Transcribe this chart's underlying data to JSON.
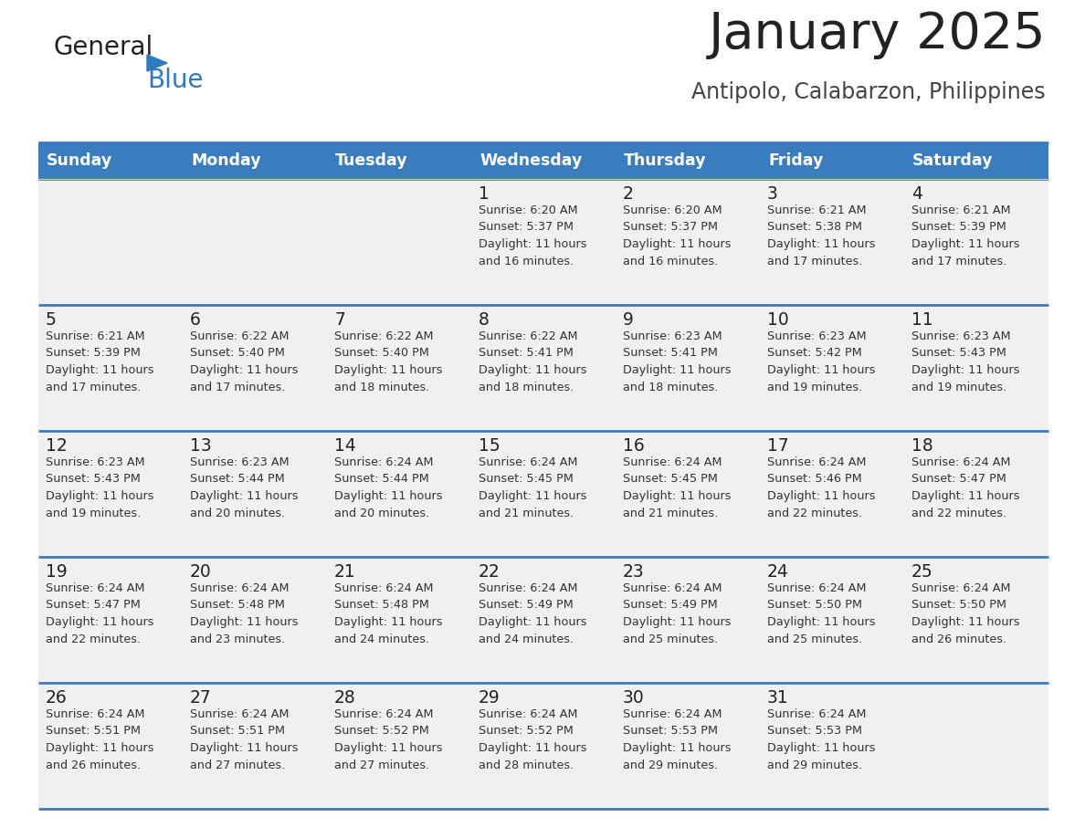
{
  "title": "January 2025",
  "subtitle": "Antipolo, Calabarzon, Philippines",
  "header_bg": "#3a7dbf",
  "header_text": "#ffffff",
  "row_bg": "#f0f0f0",
  "separator_color": "#3a7dbf",
  "day_headers": [
    "Sunday",
    "Monday",
    "Tuesday",
    "Wednesday",
    "Thursday",
    "Friday",
    "Saturday"
  ],
  "cell_text_color": "#333333",
  "day_number_color": "#222222",
  "logo_general_color": "#222222",
  "logo_blue_color": "#2a7cbf",
  "title_color": "#222222",
  "subtitle_color": "#444444",
  "calendar_data": [
    [
      "",
      "",
      "",
      "1\nSunrise: 6:20 AM\nSunset: 5:37 PM\nDaylight: 11 hours\nand 16 minutes.",
      "2\nSunrise: 6:20 AM\nSunset: 5:37 PM\nDaylight: 11 hours\nand 16 minutes.",
      "3\nSunrise: 6:21 AM\nSunset: 5:38 PM\nDaylight: 11 hours\nand 17 minutes.",
      "4\nSunrise: 6:21 AM\nSunset: 5:39 PM\nDaylight: 11 hours\nand 17 minutes."
    ],
    [
      "5\nSunrise: 6:21 AM\nSunset: 5:39 PM\nDaylight: 11 hours\nand 17 minutes.",
      "6\nSunrise: 6:22 AM\nSunset: 5:40 PM\nDaylight: 11 hours\nand 17 minutes.",
      "7\nSunrise: 6:22 AM\nSunset: 5:40 PM\nDaylight: 11 hours\nand 18 minutes.",
      "8\nSunrise: 6:22 AM\nSunset: 5:41 PM\nDaylight: 11 hours\nand 18 minutes.",
      "9\nSunrise: 6:23 AM\nSunset: 5:41 PM\nDaylight: 11 hours\nand 18 minutes.",
      "10\nSunrise: 6:23 AM\nSunset: 5:42 PM\nDaylight: 11 hours\nand 19 minutes.",
      "11\nSunrise: 6:23 AM\nSunset: 5:43 PM\nDaylight: 11 hours\nand 19 minutes."
    ],
    [
      "12\nSunrise: 6:23 AM\nSunset: 5:43 PM\nDaylight: 11 hours\nand 19 minutes.",
      "13\nSunrise: 6:23 AM\nSunset: 5:44 PM\nDaylight: 11 hours\nand 20 minutes.",
      "14\nSunrise: 6:24 AM\nSunset: 5:44 PM\nDaylight: 11 hours\nand 20 minutes.",
      "15\nSunrise: 6:24 AM\nSunset: 5:45 PM\nDaylight: 11 hours\nand 21 minutes.",
      "16\nSunrise: 6:24 AM\nSunset: 5:45 PM\nDaylight: 11 hours\nand 21 minutes.",
      "17\nSunrise: 6:24 AM\nSunset: 5:46 PM\nDaylight: 11 hours\nand 22 minutes.",
      "18\nSunrise: 6:24 AM\nSunset: 5:47 PM\nDaylight: 11 hours\nand 22 minutes."
    ],
    [
      "19\nSunrise: 6:24 AM\nSunset: 5:47 PM\nDaylight: 11 hours\nand 22 minutes.",
      "20\nSunrise: 6:24 AM\nSunset: 5:48 PM\nDaylight: 11 hours\nand 23 minutes.",
      "21\nSunrise: 6:24 AM\nSunset: 5:48 PM\nDaylight: 11 hours\nand 24 minutes.",
      "22\nSunrise: 6:24 AM\nSunset: 5:49 PM\nDaylight: 11 hours\nand 24 minutes.",
      "23\nSunrise: 6:24 AM\nSunset: 5:49 PM\nDaylight: 11 hours\nand 25 minutes.",
      "24\nSunrise: 6:24 AM\nSunset: 5:50 PM\nDaylight: 11 hours\nand 25 minutes.",
      "25\nSunrise: 6:24 AM\nSunset: 5:50 PM\nDaylight: 11 hours\nand 26 minutes."
    ],
    [
      "26\nSunrise: 6:24 AM\nSunset: 5:51 PM\nDaylight: 11 hours\nand 26 minutes.",
      "27\nSunrise: 6:24 AM\nSunset: 5:51 PM\nDaylight: 11 hours\nand 27 minutes.",
      "28\nSunrise: 6:24 AM\nSunset: 5:52 PM\nDaylight: 11 hours\nand 27 minutes.",
      "29\nSunrise: 6:24 AM\nSunset: 5:52 PM\nDaylight: 11 hours\nand 28 minutes.",
      "30\nSunrise: 6:24 AM\nSunset: 5:53 PM\nDaylight: 11 hours\nand 29 minutes.",
      "31\nSunrise: 6:24 AM\nSunset: 5:53 PM\nDaylight: 11 hours\nand 29 minutes.",
      ""
    ]
  ]
}
